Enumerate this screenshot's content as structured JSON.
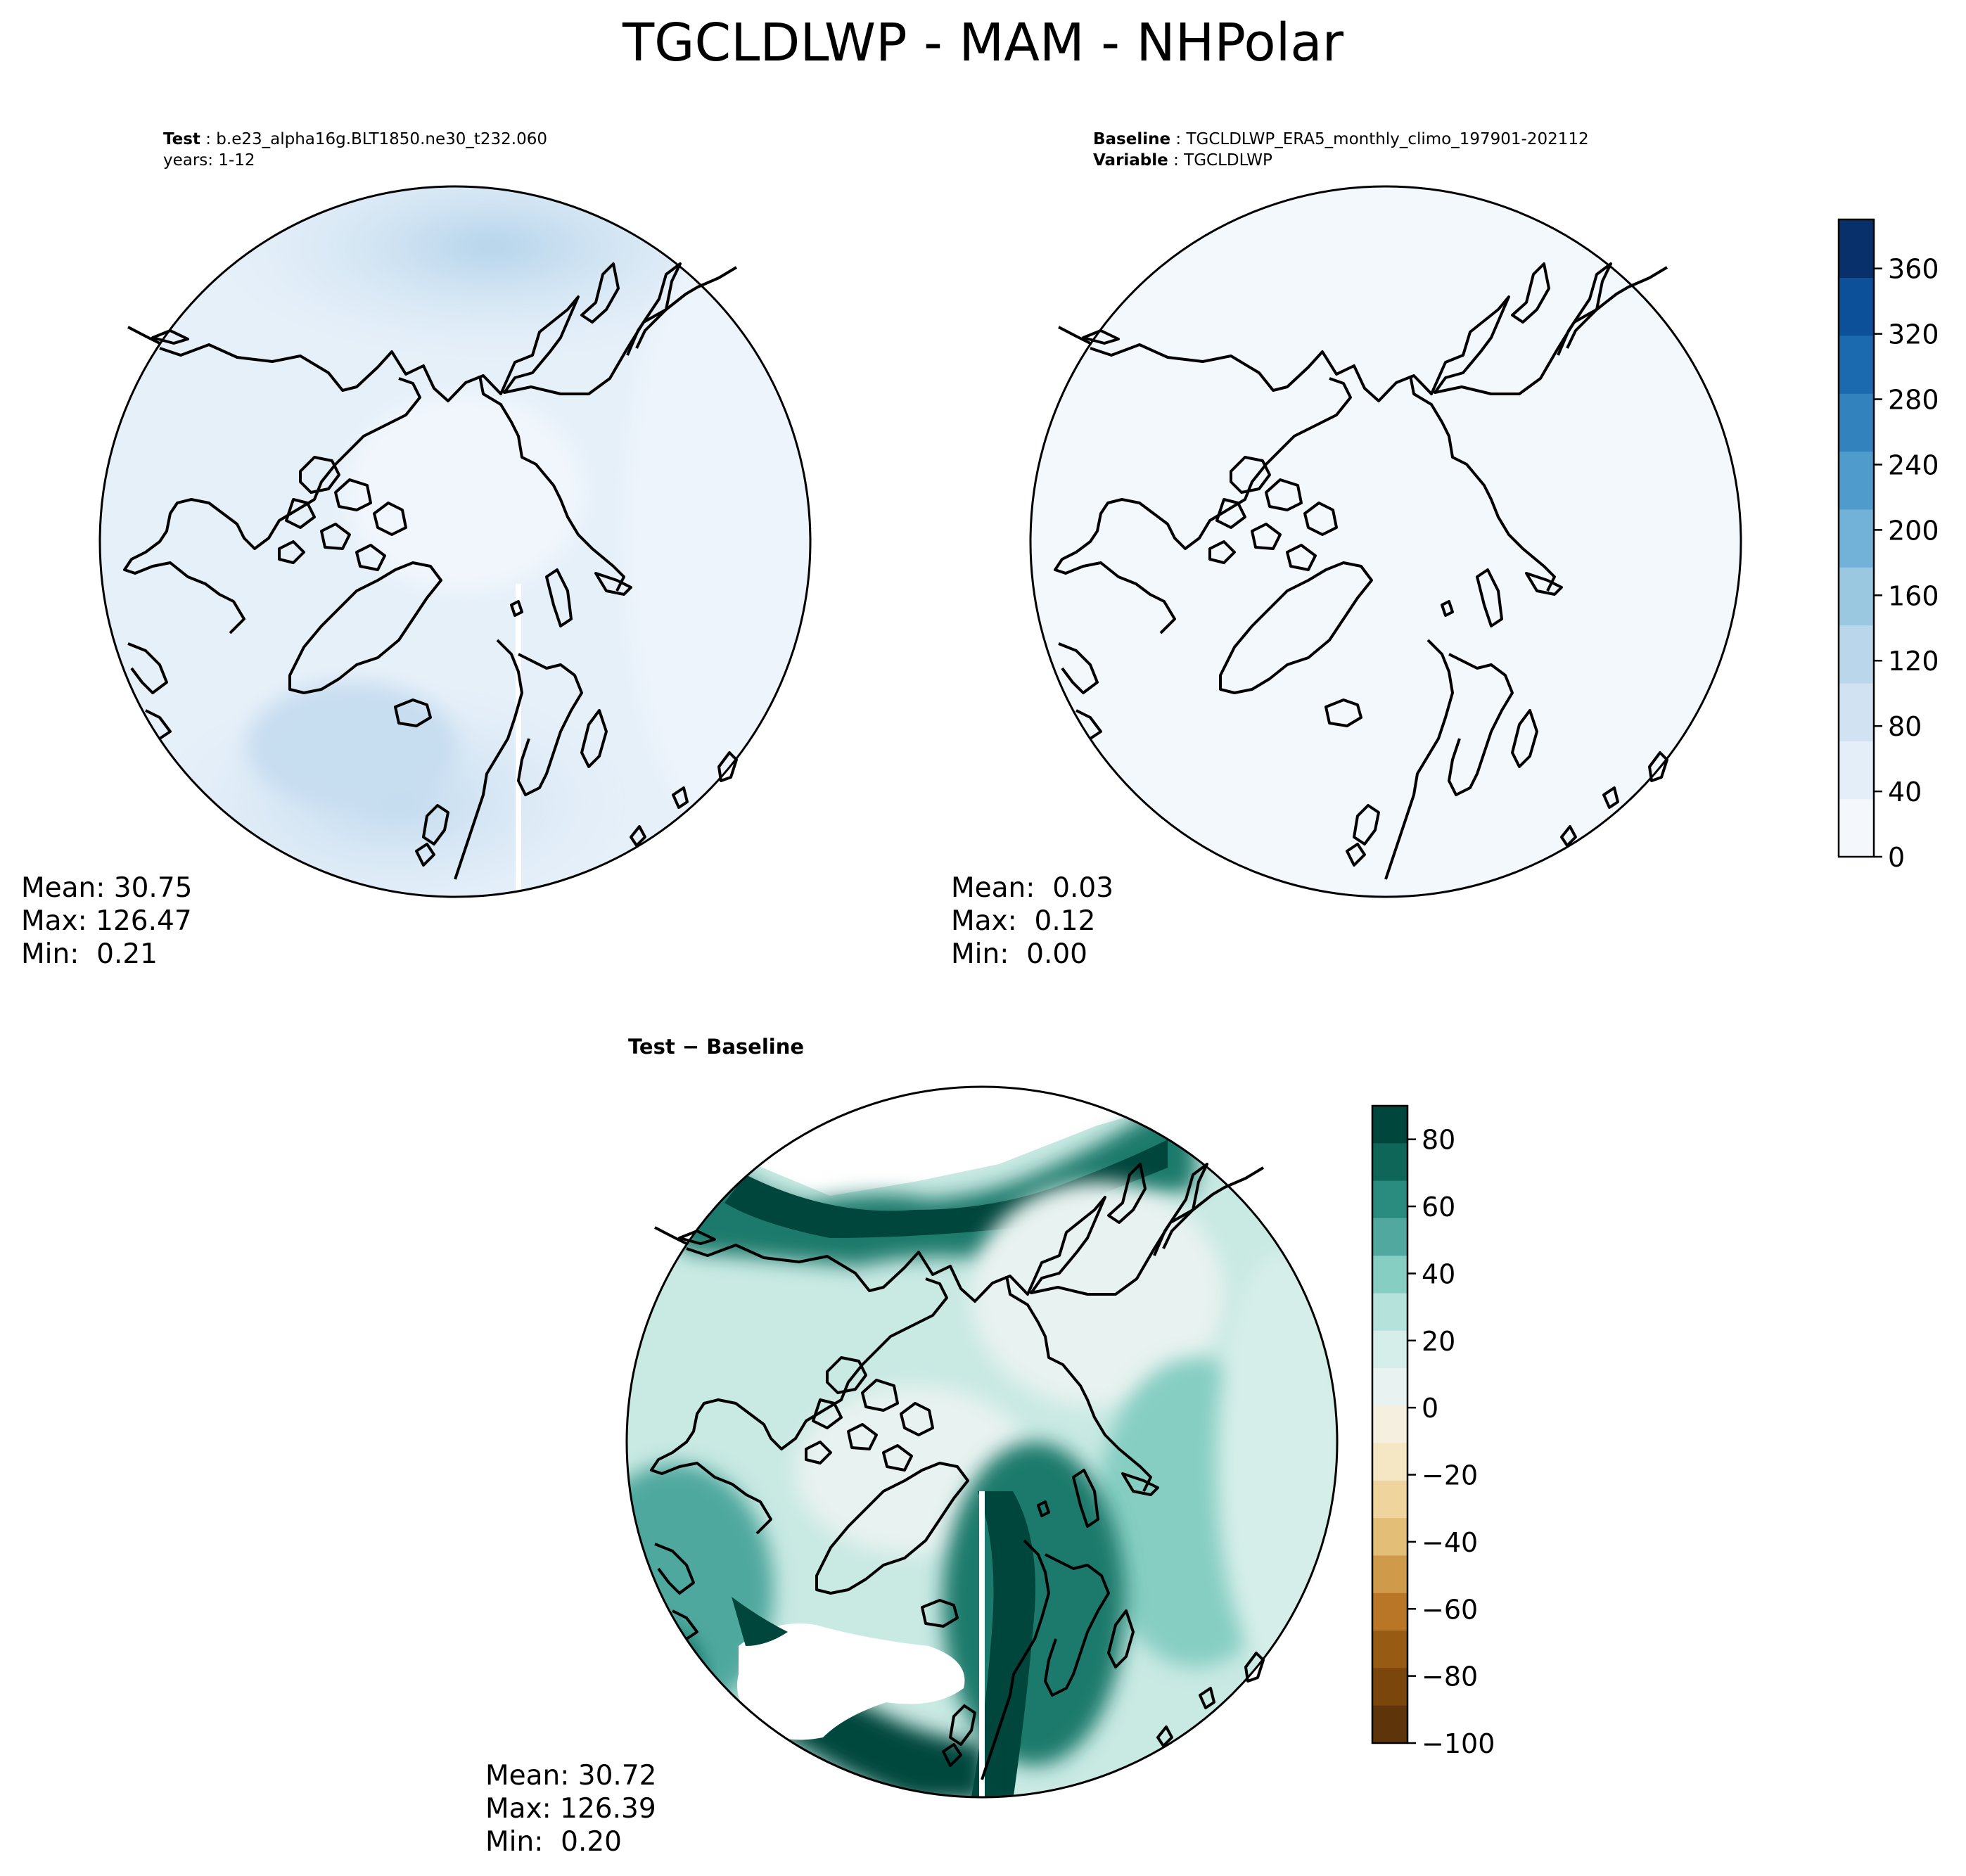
{
  "figure": {
    "title": "TGCLDLWP - MAM - NHPolar"
  },
  "panels": {
    "test": {
      "label_key": "Test",
      "label_value": "b.e23_alpha16g.BLT1850.ne30_t232.060",
      "label_line2": "years: 1-12",
      "mean": "Mean: 30.75",
      "max": "Max: 126.47",
      "min": "Min:  0.21"
    },
    "baseline": {
      "label_key": "Baseline",
      "label_value": "TGCLDLWP_ERA5_monthly_climo_197901-202112",
      "label_key2": "Variable",
      "label_value2": "TGCLDLWP",
      "mean": "Mean:  0.03",
      "max": "Max:  0.12",
      "min": "Min:  0.00"
    },
    "diff": {
      "title": "Test − Baseline",
      "mean": "Mean: 30.72",
      "max": "Max: 126.39",
      "min": "Min:  0.20"
    }
  },
  "colorbars": {
    "main": {
      "colormap": "Blues",
      "range": [
        0,
        390
      ],
      "ticks": [
        "0",
        "40",
        "80",
        "120",
        "160",
        "200",
        "240",
        "280",
        "320",
        "360"
      ],
      "colors": [
        "#f4f8fd",
        "#e3eef8",
        "#d1e3f3",
        "#bad6eb",
        "#9ac8e0",
        "#73b2d8",
        "#4f9bcb",
        "#3282be",
        "#1b69af",
        "#0b5099",
        "#08306b"
      ]
    },
    "diff": {
      "colormap": "BrBG",
      "range": [
        -100,
        90
      ],
      "ticks": [
        "80",
        "60",
        "40",
        "20",
        "0",
        "−20",
        "−40",
        "−60",
        "−80",
        "−100"
      ],
      "colors": [
        "#00463c",
        "#0e6659",
        "#2a8b7f",
        "#50a89e",
        "#86cec2",
        "#b5e2da",
        "#d6eee9",
        "#e8f2f0",
        "#f5efe0",
        "#f5e6c4",
        "#efd59d",
        "#e2be76",
        "#cf9a4a",
        "#b97627",
        "#975b13",
        "#7a460b",
        "#5e340a"
      ]
    }
  }
}
